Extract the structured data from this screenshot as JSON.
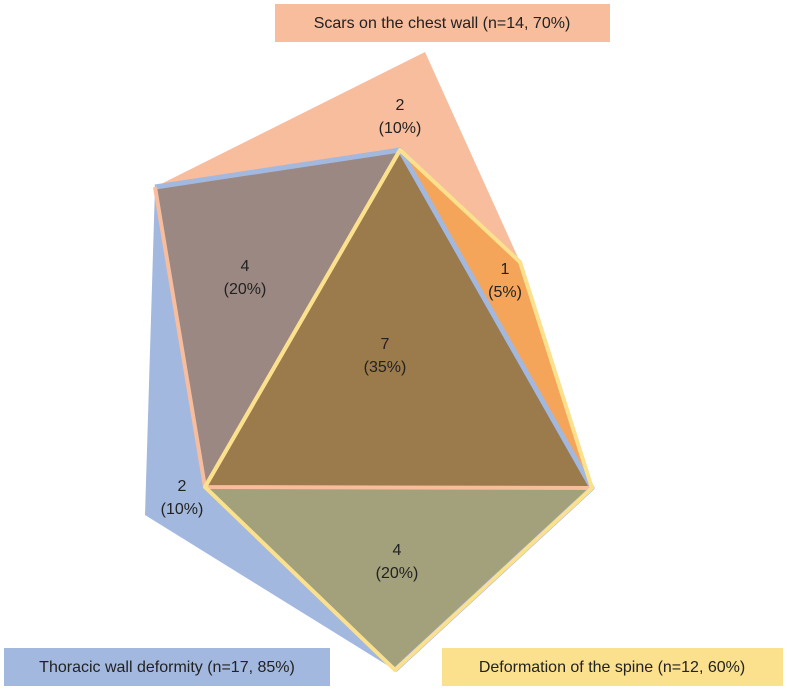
{
  "sets": [
    {
      "label": "Scars on the chest wall (n=14, 70%)"
    },
    {
      "label": "Thoracic wall deformity (n=17, 85%)"
    },
    {
      "label": "Deformation of the spine (n=12, 60%)"
    }
  ],
  "regions": [
    {
      "count": "2",
      "percent": "(10%)"
    },
    {
      "count": "4",
      "percent": "(20%)"
    },
    {
      "count": "7",
      "percent": "(35%)"
    },
    {
      "count": "1",
      "percent": "(5%)"
    },
    {
      "count": "2",
      "percent": "(10%)"
    },
    {
      "count": "4",
      "percent": "(20%)"
    }
  ]
}
